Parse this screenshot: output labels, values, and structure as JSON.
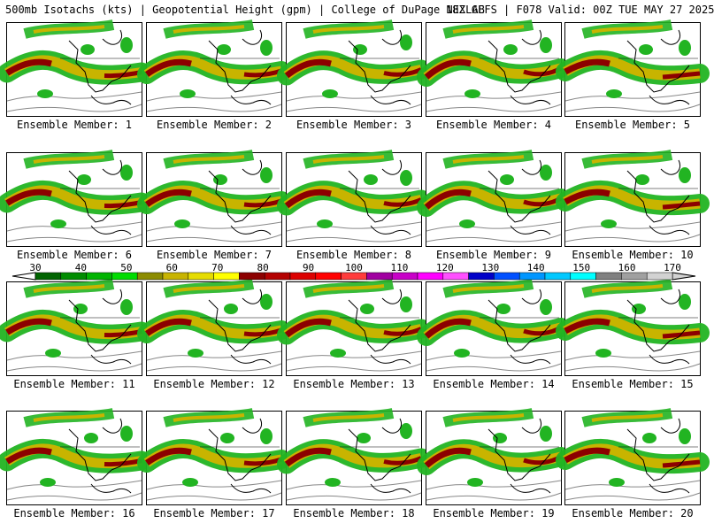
{
  "header": {
    "title_left": "500mb Isotachs (kts) | Geopotential Height (gpm) | College of DuPage NEXLAB",
    "title_right": "18Z GEFS | F078 Valid: 00Z TUE MAY 27 2025"
  },
  "panels": [
    {
      "label": "Ensemble Member: 1"
    },
    {
      "label": "Ensemble Member: 2"
    },
    {
      "label": "Ensemble Member: 3"
    },
    {
      "label": "Ensemble Member: 4"
    },
    {
      "label": "Ensemble Member: 5"
    },
    {
      "label": "Ensemble Member: 6"
    },
    {
      "label": "Ensemble Member: 7"
    },
    {
      "label": "Ensemble Member: 8"
    },
    {
      "label": "Ensemble Member: 9"
    },
    {
      "label": "Ensemble Member: 10"
    },
    {
      "label": "Ensemble Member: 11"
    },
    {
      "label": "Ensemble Member: 12"
    },
    {
      "label": "Ensemble Member: 13"
    },
    {
      "label": "Ensemble Member: 14"
    },
    {
      "label": "Ensemble Member: 15"
    },
    {
      "label": "Ensemble Member: 16"
    },
    {
      "label": "Ensemble Member: 17"
    },
    {
      "label": "Ensemble Member: 18"
    },
    {
      "label": "Ensemble Member: 19"
    },
    {
      "label": "Ensemble Member: 20"
    }
  ],
  "legend": {
    "ticks": [
      "30",
      "40",
      "50",
      "60",
      "70",
      "80",
      "90",
      "100",
      "110",
      "120",
      "130",
      "140",
      "150",
      "160",
      "170"
    ],
    "colors": [
      "#006400",
      "#008c00",
      "#00b400",
      "#00dc00",
      "#8c8c00",
      "#c8b400",
      "#e6dc00",
      "#ffff00",
      "#8c0000",
      "#b40000",
      "#dc0000",
      "#ff0000",
      "#ff3c3c",
      "#a000a0",
      "#c800c8",
      "#ff00ff",
      "#ff50ff",
      "#0000c8",
      "#0050ff",
      "#0096ff",
      "#00c8ff",
      "#00ffff",
      "#808080",
      "#a0a0a0",
      "#d2d2d2"
    ]
  }
}
